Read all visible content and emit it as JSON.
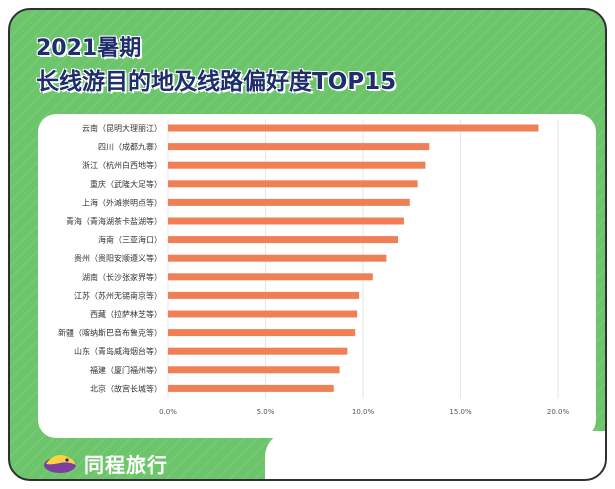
{
  "title_line1": "2021暑期",
  "title_line2": "长线游目的地及线路偏好度TOP15",
  "brand": "同程旅行",
  "colors": {
    "bar": "#f07f56",
    "background": "#6cc56a",
    "title": "#1e2d6b"
  },
  "chart_data": {
    "type": "bar",
    "orientation": "horizontal",
    "categories": [
      "云南（昆明大理丽江）",
      "四川（成都九寨）",
      "浙江（杭州白西地等）",
      "重庆（武隆大足等）",
      "上海（外滩崇明点等）",
      "青海（青海湖茶卡盐湖等）",
      "海南（三亚海口）",
      "贵州（贵阳安顺遵义等）",
      "湖南（长沙张家界等）",
      "江苏（苏州无锡南京等）",
      "西藏（拉萨林芝等）",
      "新疆（喀纳斯巴音布鲁克等）",
      "山东（青岛威海烟台等）",
      "福建（厦门福州等）",
      "北京（故宫长城等）"
    ],
    "values": [
      19.0,
      13.4,
      13.2,
      12.8,
      12.4,
      12.1,
      11.8,
      11.2,
      10.5,
      9.8,
      9.7,
      9.6,
      9.2,
      8.8,
      8.5
    ],
    "x_ticks": [
      "0.0%",
      "5.0%",
      "10.0%",
      "15.0%",
      "20.0%"
    ],
    "xlim": [
      0,
      20
    ],
    "grid": true
  }
}
